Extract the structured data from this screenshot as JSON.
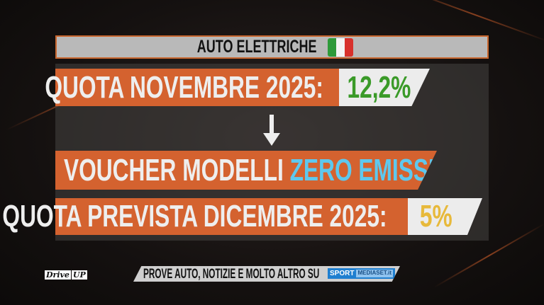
{
  "header": {
    "title": "AUTO ELETTRICHE",
    "flag_colors": [
      "#2e9a3a",
      "#f4f4f4",
      "#d8312c"
    ]
  },
  "rows": [
    {
      "label": "QUOTA NOVEMBRE 2025:",
      "value": "12,2%",
      "value_color": "#3a9a28"
    },
    {
      "label": "VOUCHER MODELLI",
      "highlight": "ZERO EMISSIONI",
      "highlight_color": "#5ec8ee"
    },
    {
      "label": "QUOTA PREVISTA DICEMBRE 2025:",
      "value": "5%",
      "value_color": "#e7b93b"
    }
  ],
  "footer": {
    "logo": "Drive",
    "logo_suffix": "UP",
    "ticker": "PROVE AUTO, NOTIZIE E MOLTO ALTRO SU",
    "brand": "SPORT",
    "brand_suffix": "MEDIASET.it"
  },
  "colors": {
    "accent": "#d4622f"
  }
}
